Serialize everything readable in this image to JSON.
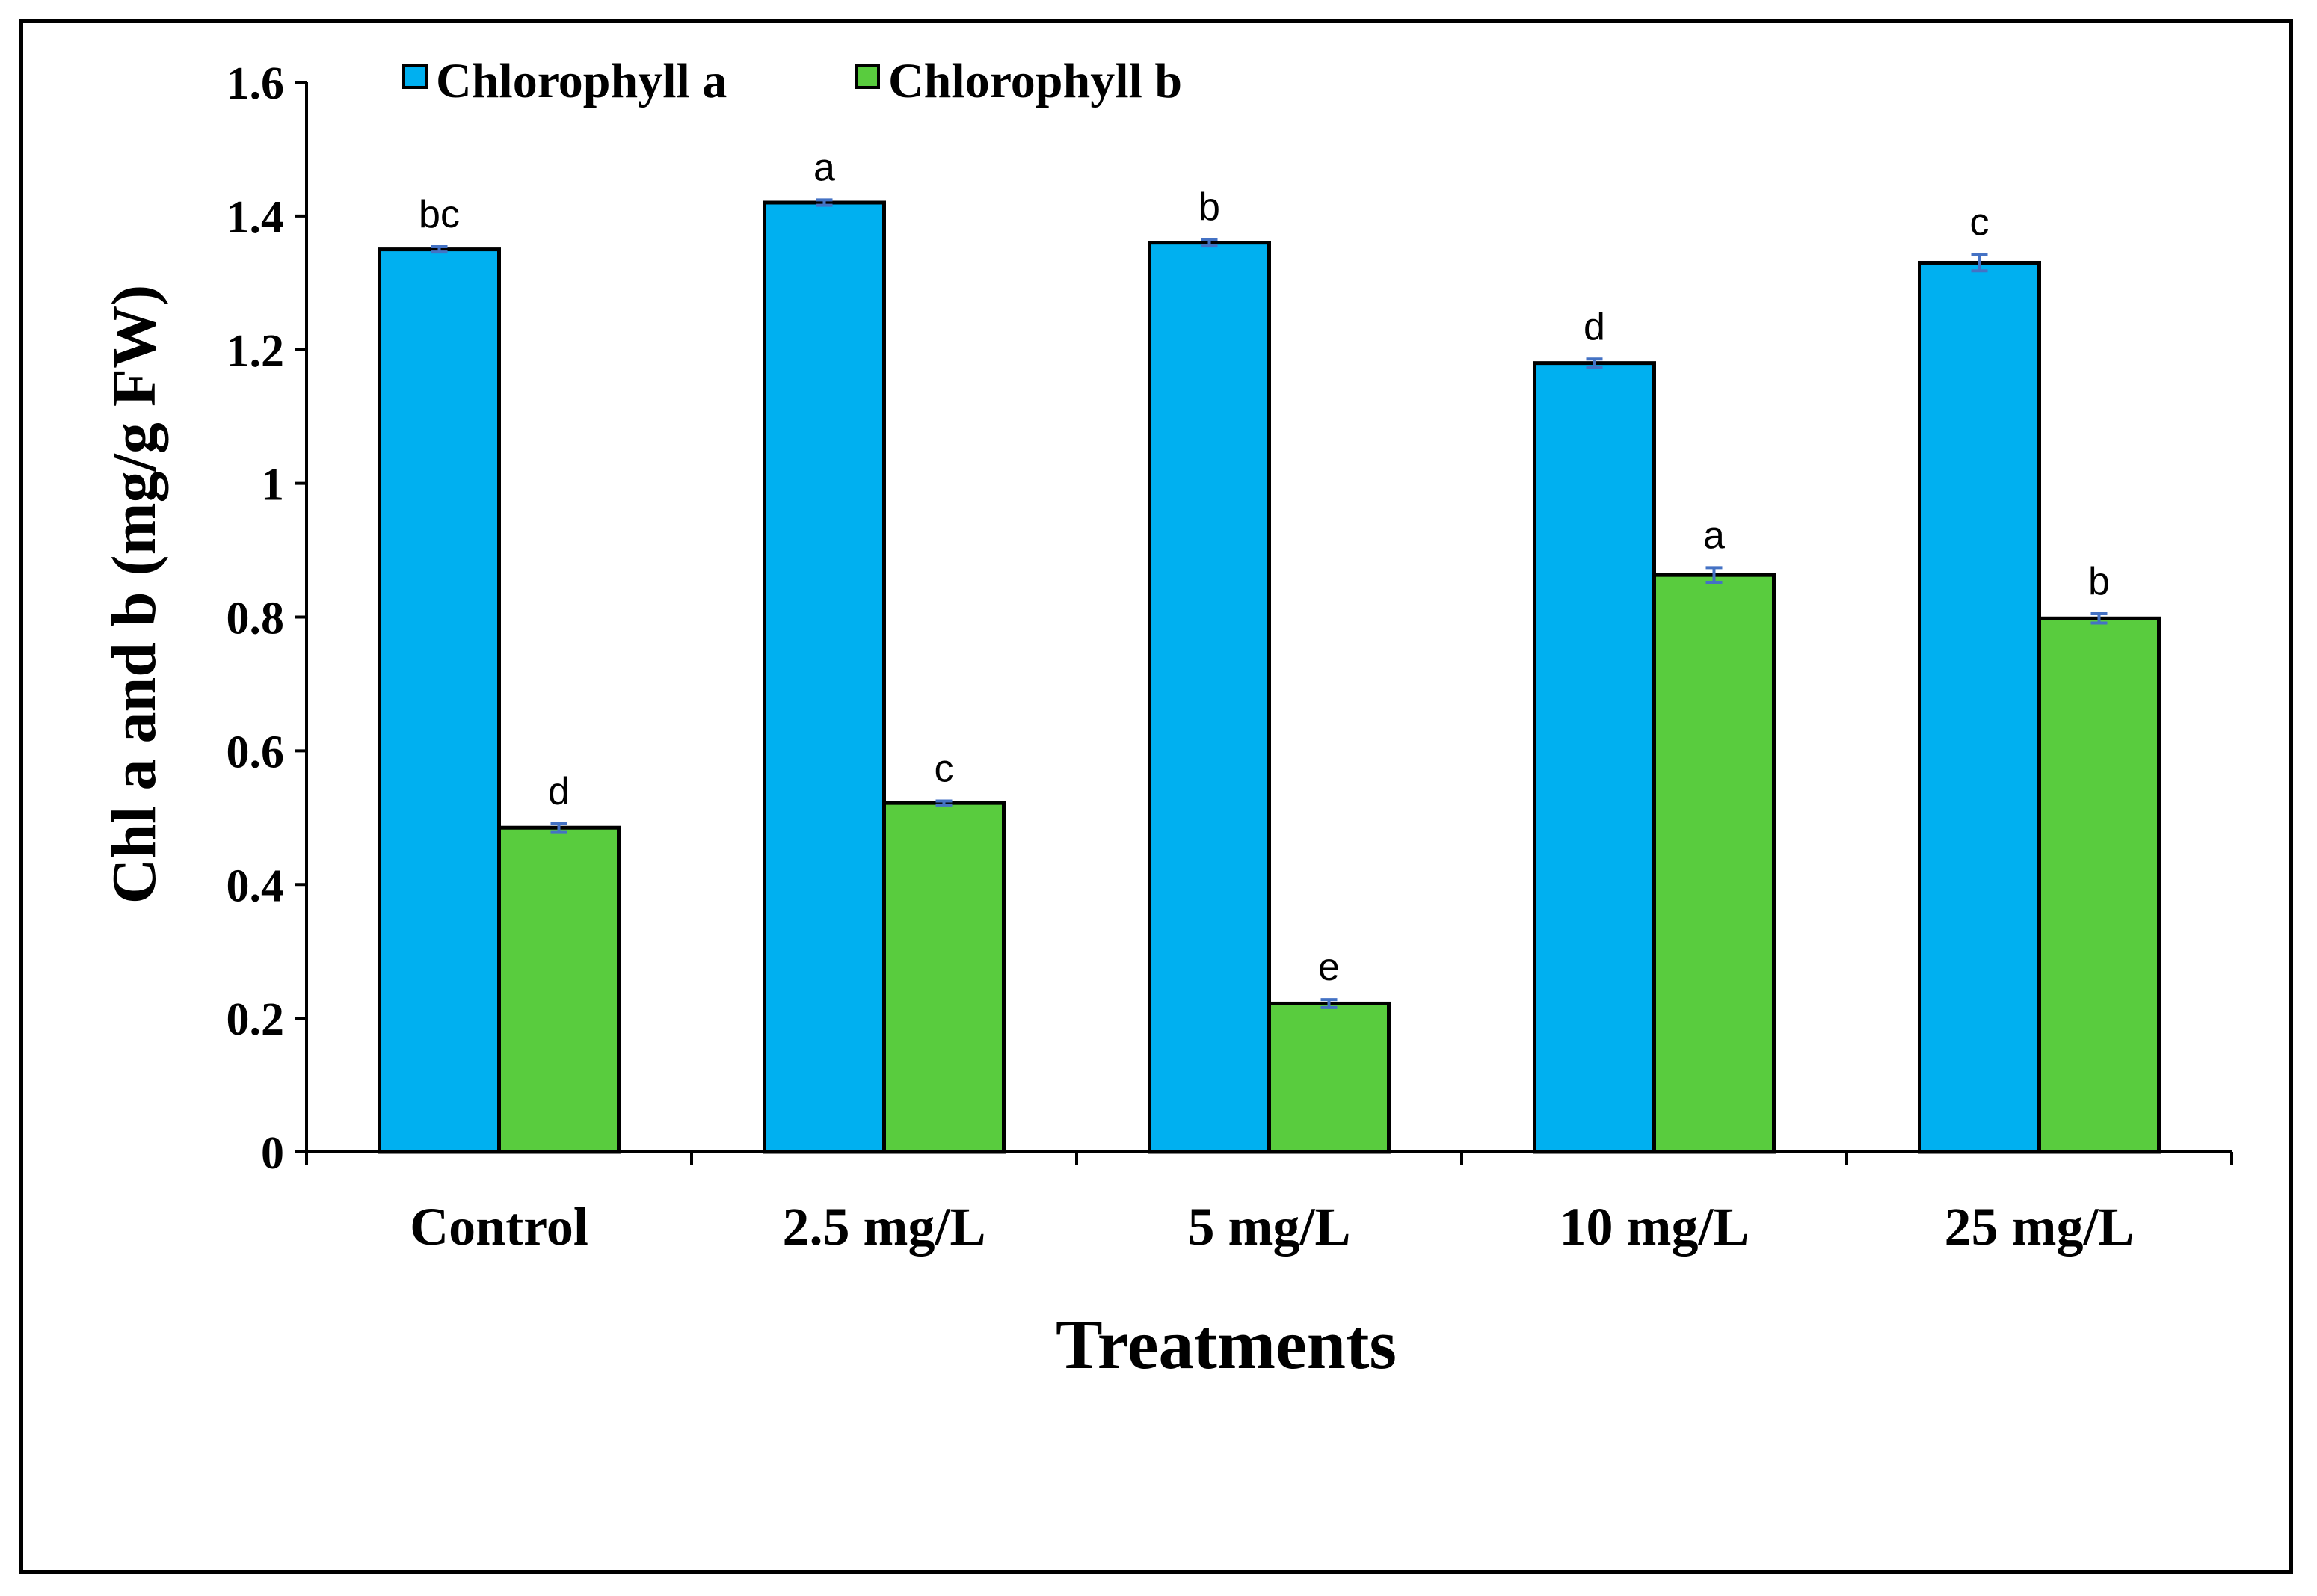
{
  "chart_data": {
    "type": "bar",
    "categories": [
      "Control",
      "2.5 mg/L",
      "5 mg/L",
      "10 mg/L",
      "25 mg/L"
    ],
    "series": [
      {
        "name": "Chlorophyll a",
        "color": "#00b0f0",
        "values": [
          1.35,
          1.42,
          1.36,
          1.18,
          1.33
        ],
        "errors": [
          0.004,
          0.004,
          0.005,
          0.006,
          0.012
        ],
        "letters": [
          "bc",
          "a",
          "b",
          "d",
          "c"
        ]
      },
      {
        "name": "Chlorophyll b",
        "color": "#59cc3e",
        "values": [
          0.485,
          0.522,
          0.222,
          0.863,
          0.798
        ],
        "errors": [
          0.006,
          0.003,
          0.006,
          0.011,
          0.007
        ],
        "letters": [
          "d",
          "c",
          "e",
          "a",
          "b"
        ]
      }
    ],
    "xlabel": "Treatments",
    "ylabel": "Chl a and b (mg/g FW)",
    "ylim": [
      0,
      1.6
    ],
    "yticks": [
      "0",
      "0.2",
      "0.4",
      "0.6",
      "0.8",
      "1",
      "1.2",
      "1.4",
      "1.6"
    ],
    "grid": false,
    "legend_position": "top-left",
    "error_bar_color": "#4472c4"
  }
}
